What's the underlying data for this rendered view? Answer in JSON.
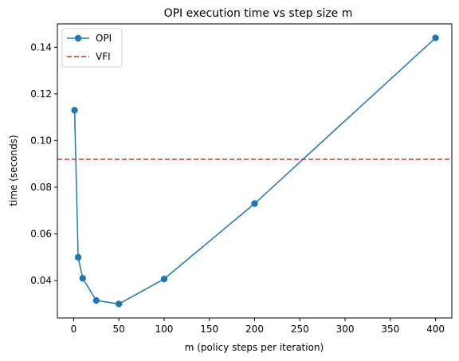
{
  "chart_data": {
    "type": "line",
    "title": "OPI execution time vs step size m",
    "xlabel": "m (policy steps per iteration)",
    "ylabel": "time (seconds)",
    "xlim": [
      -18,
      418
    ],
    "ylim": [
      0.024,
      0.15
    ],
    "xticks": [
      0,
      50,
      100,
      150,
      200,
      250,
      300,
      350,
      400
    ],
    "yticks": [
      0.04,
      0.06,
      0.08,
      0.1,
      0.12,
      0.14
    ],
    "ytick_labels": [
      "0.04",
      "0.06",
      "0.08",
      "0.10",
      "0.12",
      "0.14"
    ],
    "grid": false,
    "legend_position": "top-left",
    "series": [
      {
        "name": "OPI",
        "style": "line-with-markers",
        "color": "#1f77b4",
        "x": [
          1,
          5,
          10,
          25,
          50,
          100,
          200,
          400
        ],
        "y": [
          0.113,
          0.05,
          0.041,
          0.0315,
          0.03,
          0.0407,
          0.073,
          0.144
        ]
      }
    ],
    "reference_lines": [
      {
        "name": "VFI",
        "orientation": "horizontal",
        "style": "dashed",
        "color": "#d62728",
        "y": 0.092
      }
    ]
  }
}
